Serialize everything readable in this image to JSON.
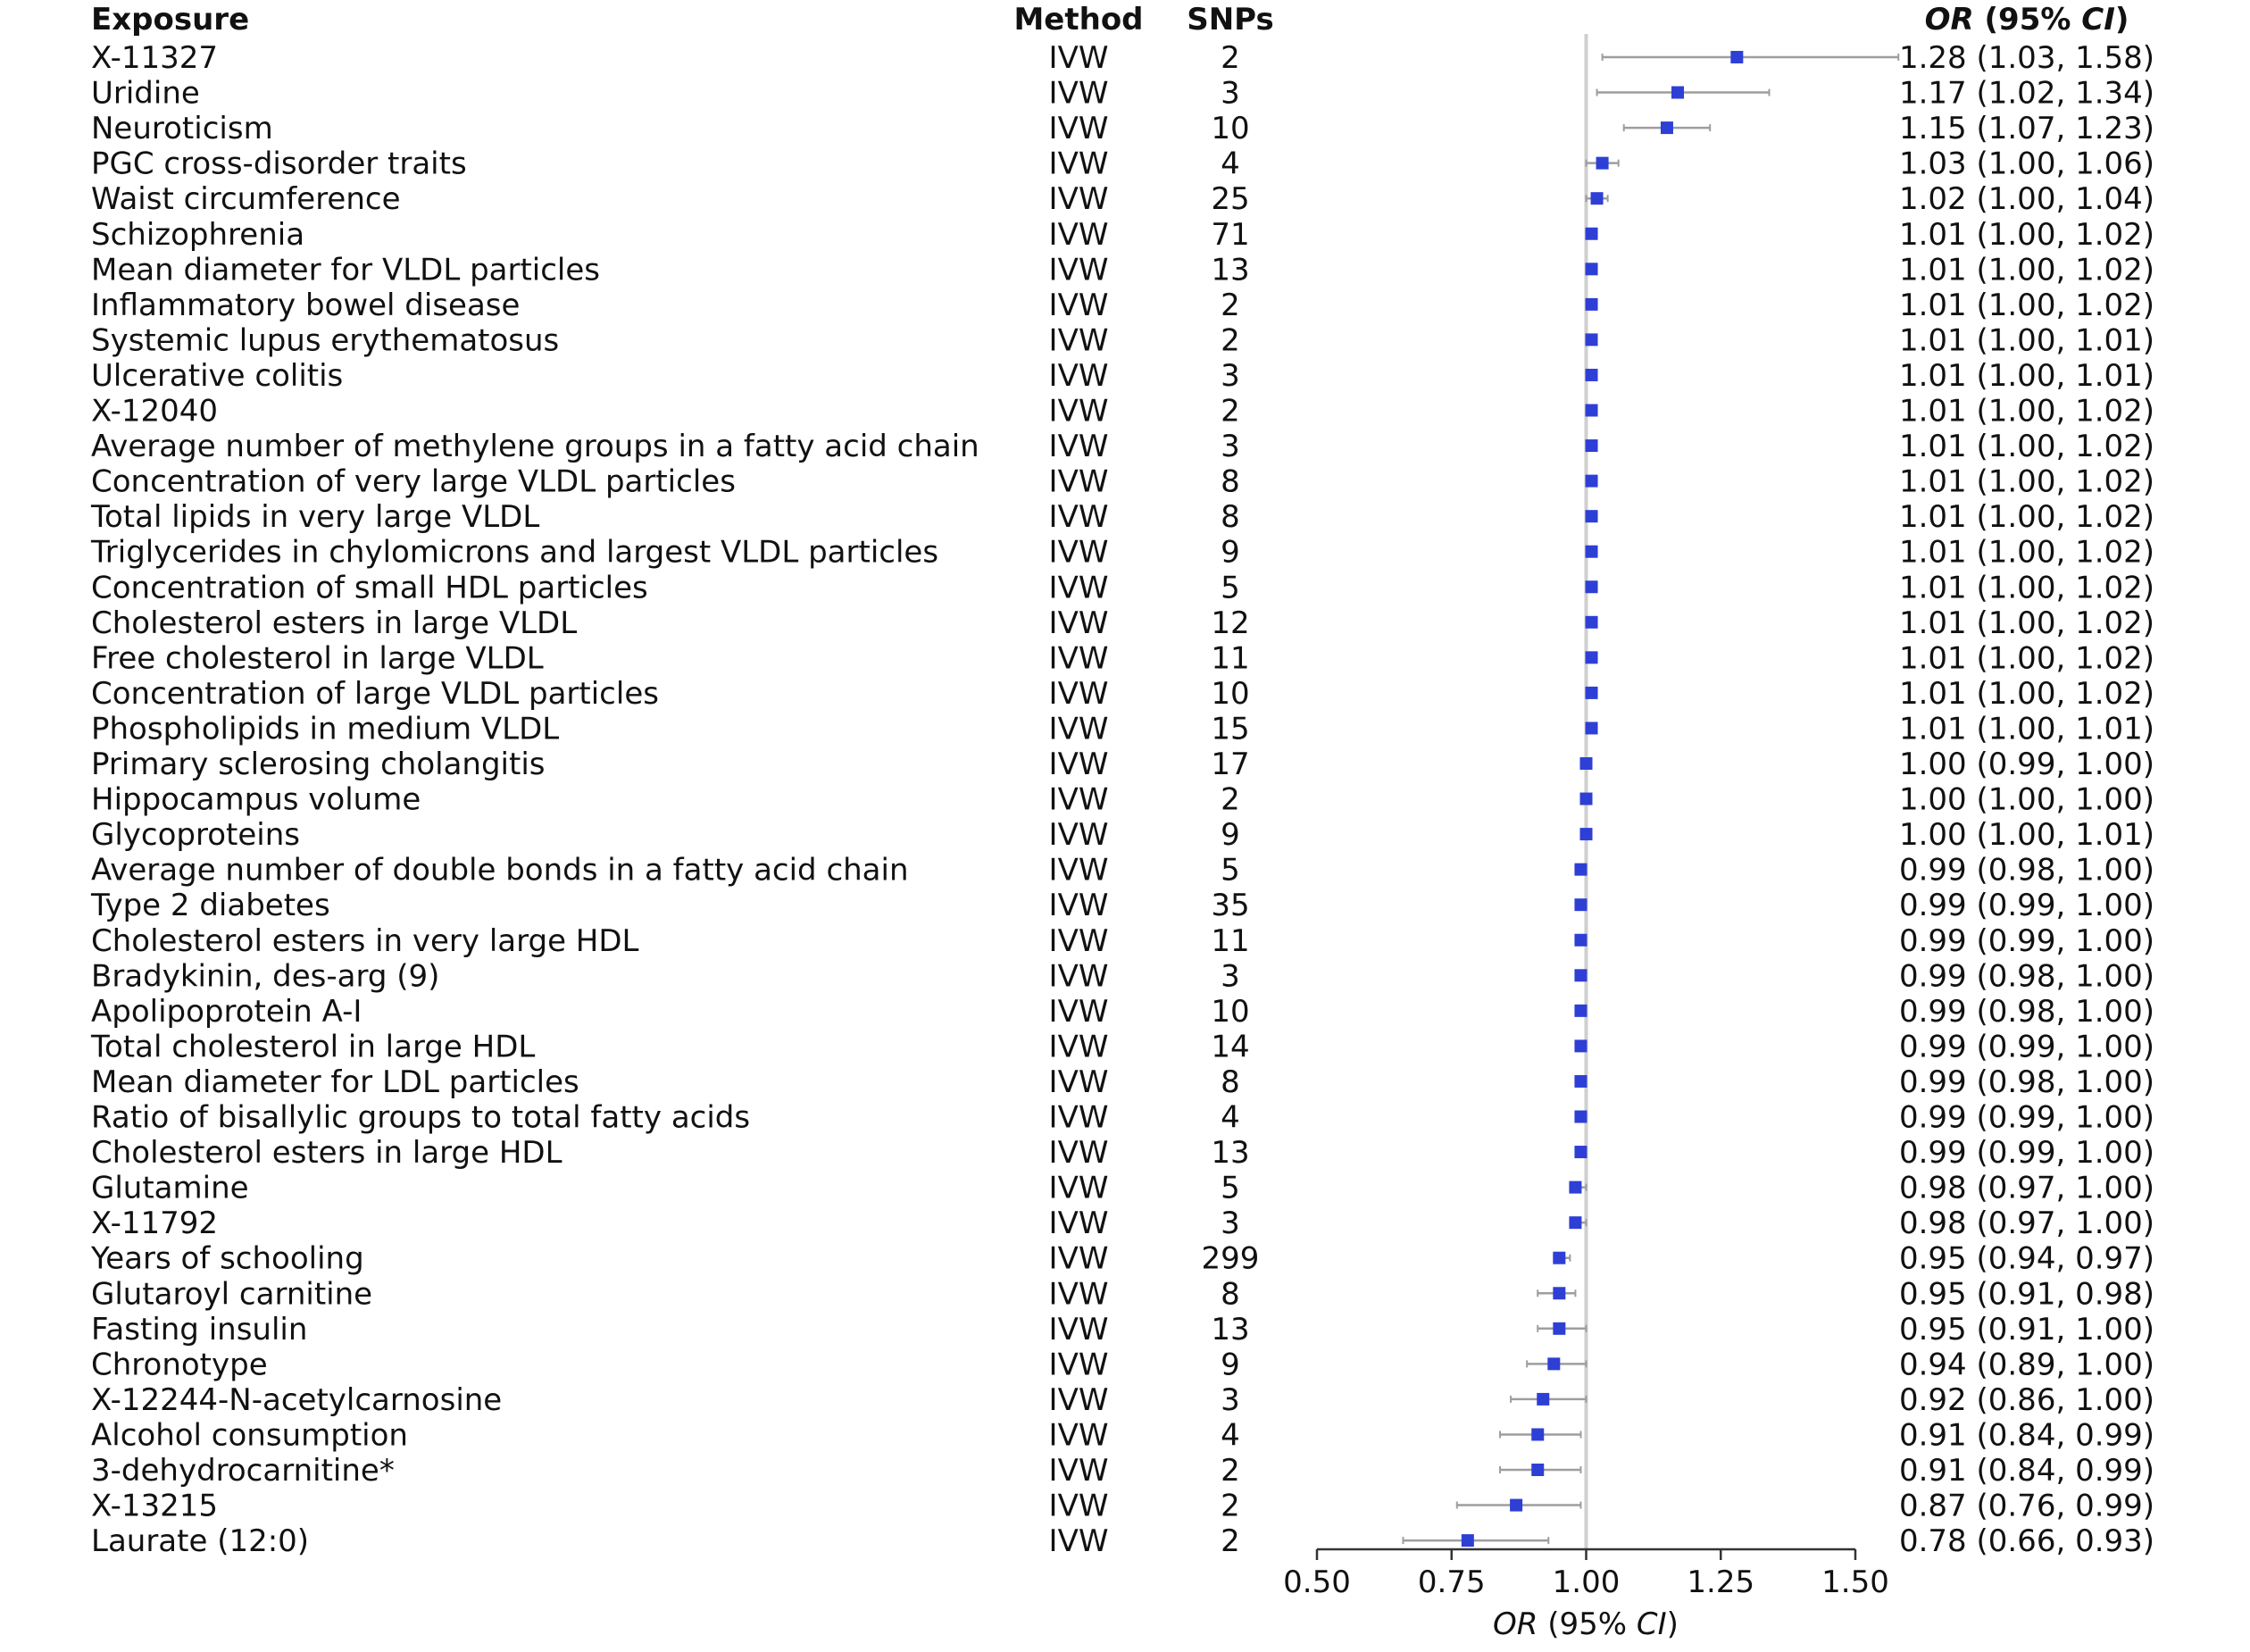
{
  "headers": {
    "exposure": "Exposure",
    "method": "Method",
    "snps": "SNPs",
    "or_ci_italic": "OR",
    "or_ci_rest": " (95% ",
    "or_ci_ci": "CI",
    "or_ci_close": ")"
  },
  "axis": {
    "xlabel_italic": "OR",
    "xlabel_rest": " (95% ",
    "xlabel_ci": "CI",
    "xlabel_close": ")"
  },
  "colors": {
    "marker": "#2E3FD6",
    "ci_line": "#9E9E9E",
    "ref_line": "#CFCFCF",
    "text": "#111111"
  },
  "chart_data": {
    "type": "forest",
    "xlim": [
      0.5,
      1.5
    ],
    "ticks": [
      "0.50",
      "0.75",
      "1.00",
      "1.25",
      "1.50"
    ],
    "reference": 1.0,
    "rows": [
      {
        "exposure": "X-11327",
        "method": "IVW",
        "snps": "2",
        "or": 1.28,
        "lo": 1.03,
        "hi": 1.58,
        "label": "1.28 (1.03, 1.58)"
      },
      {
        "exposure": "Uridine",
        "method": "IVW",
        "snps": "3",
        "or": 1.17,
        "lo": 1.02,
        "hi": 1.34,
        "label": "1.17 (1.02, 1.34)"
      },
      {
        "exposure": "Neuroticism",
        "method": "IVW",
        "snps": "10",
        "or": 1.15,
        "lo": 1.07,
        "hi": 1.23,
        "label": "1.15 (1.07, 1.23)"
      },
      {
        "exposure": "PGC cross-disorder traits",
        "method": "IVW",
        "snps": "4",
        "or": 1.03,
        "lo": 1.0,
        "hi": 1.06,
        "label": "1.03 (1.00, 1.06)"
      },
      {
        "exposure": "Waist circumference",
        "method": "IVW",
        "snps": "25",
        "or": 1.02,
        "lo": 1.0,
        "hi": 1.04,
        "label": "1.02 (1.00, 1.04)"
      },
      {
        "exposure": "Schizophrenia",
        "method": "IVW",
        "snps": "71",
        "or": 1.01,
        "lo": 1.0,
        "hi": 1.02,
        "label": "1.01 (1.00, 1.02)"
      },
      {
        "exposure": "Mean diameter for VLDL particles",
        "method": "IVW",
        "snps": "13",
        "or": 1.01,
        "lo": 1.0,
        "hi": 1.02,
        "label": "1.01 (1.00, 1.02)"
      },
      {
        "exposure": "Inflammatory bowel disease",
        "method": "IVW",
        "snps": "2",
        "or": 1.01,
        "lo": 1.0,
        "hi": 1.02,
        "label": "1.01 (1.00, 1.02)"
      },
      {
        "exposure": "Systemic lupus erythematosus",
        "method": "IVW",
        "snps": "2",
        "or": 1.01,
        "lo": 1.0,
        "hi": 1.01,
        "label": "1.01 (1.00, 1.01)"
      },
      {
        "exposure": "Ulcerative colitis",
        "method": "IVW",
        "snps": "3",
        "or": 1.01,
        "lo": 1.0,
        "hi": 1.01,
        "label": "1.01 (1.00, 1.01)"
      },
      {
        "exposure": "X-12040",
        "method": "IVW",
        "snps": "2",
        "or": 1.01,
        "lo": 1.0,
        "hi": 1.02,
        "label": "1.01 (1.00, 1.02)"
      },
      {
        "exposure": "Average number of methylene groups in a fatty acid chain",
        "method": "IVW",
        "snps": "3",
        "or": 1.01,
        "lo": 1.0,
        "hi": 1.02,
        "label": "1.01 (1.00, 1.02)"
      },
      {
        "exposure": "Concentration of very large VLDL particles",
        "method": "IVW",
        "snps": "8",
        "or": 1.01,
        "lo": 1.0,
        "hi": 1.02,
        "label": "1.01 (1.00, 1.02)"
      },
      {
        "exposure": "Total lipids in very large VLDL",
        "method": "IVW",
        "snps": "8",
        "or": 1.01,
        "lo": 1.0,
        "hi": 1.02,
        "label": "1.01 (1.00, 1.02)"
      },
      {
        "exposure": "Triglycerides in chylomicrons and largest VLDL particles",
        "method": "IVW",
        "snps": "9",
        "or": 1.01,
        "lo": 1.0,
        "hi": 1.02,
        "label": "1.01 (1.00, 1.02)"
      },
      {
        "exposure": "Concentration of small HDL particles",
        "method": "IVW",
        "snps": "5",
        "or": 1.01,
        "lo": 1.0,
        "hi": 1.02,
        "label": "1.01 (1.00, 1.02)"
      },
      {
        "exposure": "Cholesterol esters in large VLDL",
        "method": "IVW",
        "snps": "12",
        "or": 1.01,
        "lo": 1.0,
        "hi": 1.02,
        "label": "1.01 (1.00, 1.02)"
      },
      {
        "exposure": "Free cholesterol in large VLDL",
        "method": "IVW",
        "snps": "11",
        "or": 1.01,
        "lo": 1.0,
        "hi": 1.02,
        "label": "1.01 (1.00, 1.02)"
      },
      {
        "exposure": "Concentration of large VLDL particles",
        "method": "IVW",
        "snps": "10",
        "or": 1.01,
        "lo": 1.0,
        "hi": 1.02,
        "label": "1.01 (1.00, 1.02)"
      },
      {
        "exposure": "Phospholipids in medium VLDL",
        "method": "IVW",
        "snps": "15",
        "or": 1.01,
        "lo": 1.0,
        "hi": 1.01,
        "label": "1.01 (1.00, 1.01)"
      },
      {
        "exposure": "Primary sclerosing cholangitis",
        "method": "IVW",
        "snps": "17",
        "or": 1.0,
        "lo": 0.99,
        "hi": 1.0,
        "label": "1.00 (0.99, 1.00)"
      },
      {
        "exposure": "Hippocampus volume",
        "method": "IVW",
        "snps": "2",
        "or": 1.0,
        "lo": 1.0,
        "hi": 1.0,
        "label": "1.00 (1.00, 1.00)"
      },
      {
        "exposure": "Glycoproteins",
        "method": "IVW",
        "snps": "9",
        "or": 1.0,
        "lo": 1.0,
        "hi": 1.01,
        "label": "1.00 (1.00, 1.01)"
      },
      {
        "exposure": "Average number of double bonds in a fatty acid chain",
        "method": "IVW",
        "snps": "5",
        "or": 0.99,
        "lo": 0.98,
        "hi": 1.0,
        "label": "0.99 (0.98, 1.00)"
      },
      {
        "exposure": "Type 2 diabetes",
        "method": "IVW",
        "snps": "35",
        "or": 0.99,
        "lo": 0.99,
        "hi": 1.0,
        "label": "0.99 (0.99, 1.00)"
      },
      {
        "exposure": "Cholesterol esters in very large HDL",
        "method": "IVW",
        "snps": "11",
        "or": 0.99,
        "lo": 0.99,
        "hi": 1.0,
        "label": "0.99 (0.99, 1.00)"
      },
      {
        "exposure": "Bradykinin, des-arg (9)",
        "method": "IVW",
        "snps": "3",
        "or": 0.99,
        "lo": 0.98,
        "hi": 1.0,
        "label": "0.99 (0.98, 1.00)"
      },
      {
        "exposure": "Apolipoprotein A-I",
        "method": "IVW",
        "snps": "10",
        "or": 0.99,
        "lo": 0.98,
        "hi": 1.0,
        "label": "0.99 (0.98, 1.00)"
      },
      {
        "exposure": "Total cholesterol in large HDL",
        "method": "IVW",
        "snps": "14",
        "or": 0.99,
        "lo": 0.99,
        "hi": 1.0,
        "label": "0.99 (0.99, 1.00)"
      },
      {
        "exposure": "Mean diameter for LDL particles",
        "method": "IVW",
        "snps": "8",
        "or": 0.99,
        "lo": 0.98,
        "hi": 1.0,
        "label": "0.99 (0.98, 1.00)"
      },
      {
        "exposure": "Ratio of bisallylic groups to total fatty acids",
        "method": "IVW",
        "snps": "4",
        "or": 0.99,
        "lo": 0.99,
        "hi": 1.0,
        "label": "0.99 (0.99, 1.00)"
      },
      {
        "exposure": "Cholesterol esters in large HDL",
        "method": "IVW",
        "snps": "13",
        "or": 0.99,
        "lo": 0.99,
        "hi": 1.0,
        "label": "0.99 (0.99, 1.00)"
      },
      {
        "exposure": "Glutamine",
        "method": "IVW",
        "snps": "5",
        "or": 0.98,
        "lo": 0.97,
        "hi": 1.0,
        "label": "0.98 (0.97, 1.00)"
      },
      {
        "exposure": "X-11792",
        "method": "IVW",
        "snps": "3",
        "or": 0.98,
        "lo": 0.97,
        "hi": 1.0,
        "label": "0.98 (0.97, 1.00)"
      },
      {
        "exposure": "Years of schooling",
        "method": "IVW",
        "snps": "299",
        "or": 0.95,
        "lo": 0.94,
        "hi": 0.97,
        "label": "0.95 (0.94, 0.97)"
      },
      {
        "exposure": "Glutaroyl carnitine",
        "method": "IVW",
        "snps": "8",
        "or": 0.95,
        "lo": 0.91,
        "hi": 0.98,
        "label": "0.95 (0.91, 0.98)"
      },
      {
        "exposure": "Fasting insulin",
        "method": "IVW",
        "snps": "13",
        "or": 0.95,
        "lo": 0.91,
        "hi": 1.0,
        "label": "0.95 (0.91, 1.00)"
      },
      {
        "exposure": "Chronotype",
        "method": "IVW",
        "snps": "9",
        "or": 0.94,
        "lo": 0.89,
        "hi": 1.0,
        "label": "0.94 (0.89, 1.00)"
      },
      {
        "exposure": "X-12244-N-acetylcarnosine",
        "method": "IVW",
        "snps": "3",
        "or": 0.92,
        "lo": 0.86,
        "hi": 1.0,
        "label": "0.92 (0.86, 1.00)"
      },
      {
        "exposure": "Alcohol consumption",
        "method": "IVW",
        "snps": "4",
        "or": 0.91,
        "lo": 0.84,
        "hi": 0.99,
        "label": "0.91 (0.84, 0.99)"
      },
      {
        "exposure": "3-dehydrocarnitine*",
        "method": "IVW",
        "snps": "2",
        "or": 0.91,
        "lo": 0.84,
        "hi": 0.99,
        "label": "0.91 (0.84, 0.99)"
      },
      {
        "exposure": "X-13215",
        "method": "IVW",
        "snps": "2",
        "or": 0.87,
        "lo": 0.76,
        "hi": 0.99,
        "label": "0.87 (0.76, 0.99)"
      },
      {
        "exposure": "Laurate (12:0)",
        "method": "IVW",
        "snps": "2",
        "or": 0.78,
        "lo": 0.66,
        "hi": 0.93,
        "label": "0.78 (0.66, 0.93)"
      }
    ]
  }
}
